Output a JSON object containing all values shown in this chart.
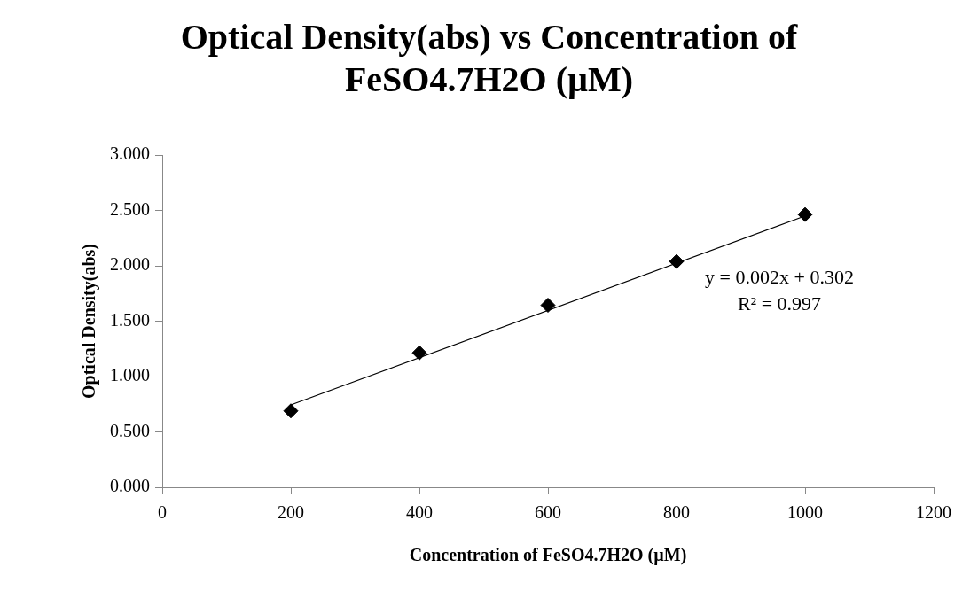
{
  "chart_data": {
    "type": "scatter",
    "title": "Optical Density(abs) vs Concentration of FeSO4.7H2O (µM)",
    "xlabel": "Concentration of FeSO4.7H2O (µM)",
    "ylabel": "Optical Density(abs)",
    "x": [
      200,
      400,
      600,
      800,
      1000
    ],
    "series": [
      {
        "type": "scatter",
        "color": "#000000",
        "marker": "diamond",
        "values": [
          0.69,
          1.214,
          1.644,
          2.039,
          2.463
        ]
      },
      {
        "type": "line",
        "color": "#000000",
        "marker": "none",
        "x": [
          200,
          1000
        ],
        "values": [
          0.744,
          2.45
        ]
      }
    ],
    "xlim": [
      0,
      1200
    ],
    "xticks": [
      0,
      200,
      400,
      600,
      800,
      1000,
      1200
    ],
    "ylim": [
      0,
      3
    ],
    "yticks": [
      {
        "value": 0,
        "label": "0.000"
      },
      {
        "value": 0.5,
        "label": "0.500"
      },
      {
        "value": 1,
        "label": "1.000"
      },
      {
        "value": 1.5,
        "label": "1.500"
      },
      {
        "value": 2,
        "label": "2.000"
      },
      {
        "value": 2.5,
        "label": "2.500"
      },
      {
        "value": 3,
        "label": "3.000"
      }
    ],
    "annotations": [
      "y = 0.002x + 0.302",
      "R² = 0.997"
    ],
    "grid": false,
    "legend": false
  }
}
